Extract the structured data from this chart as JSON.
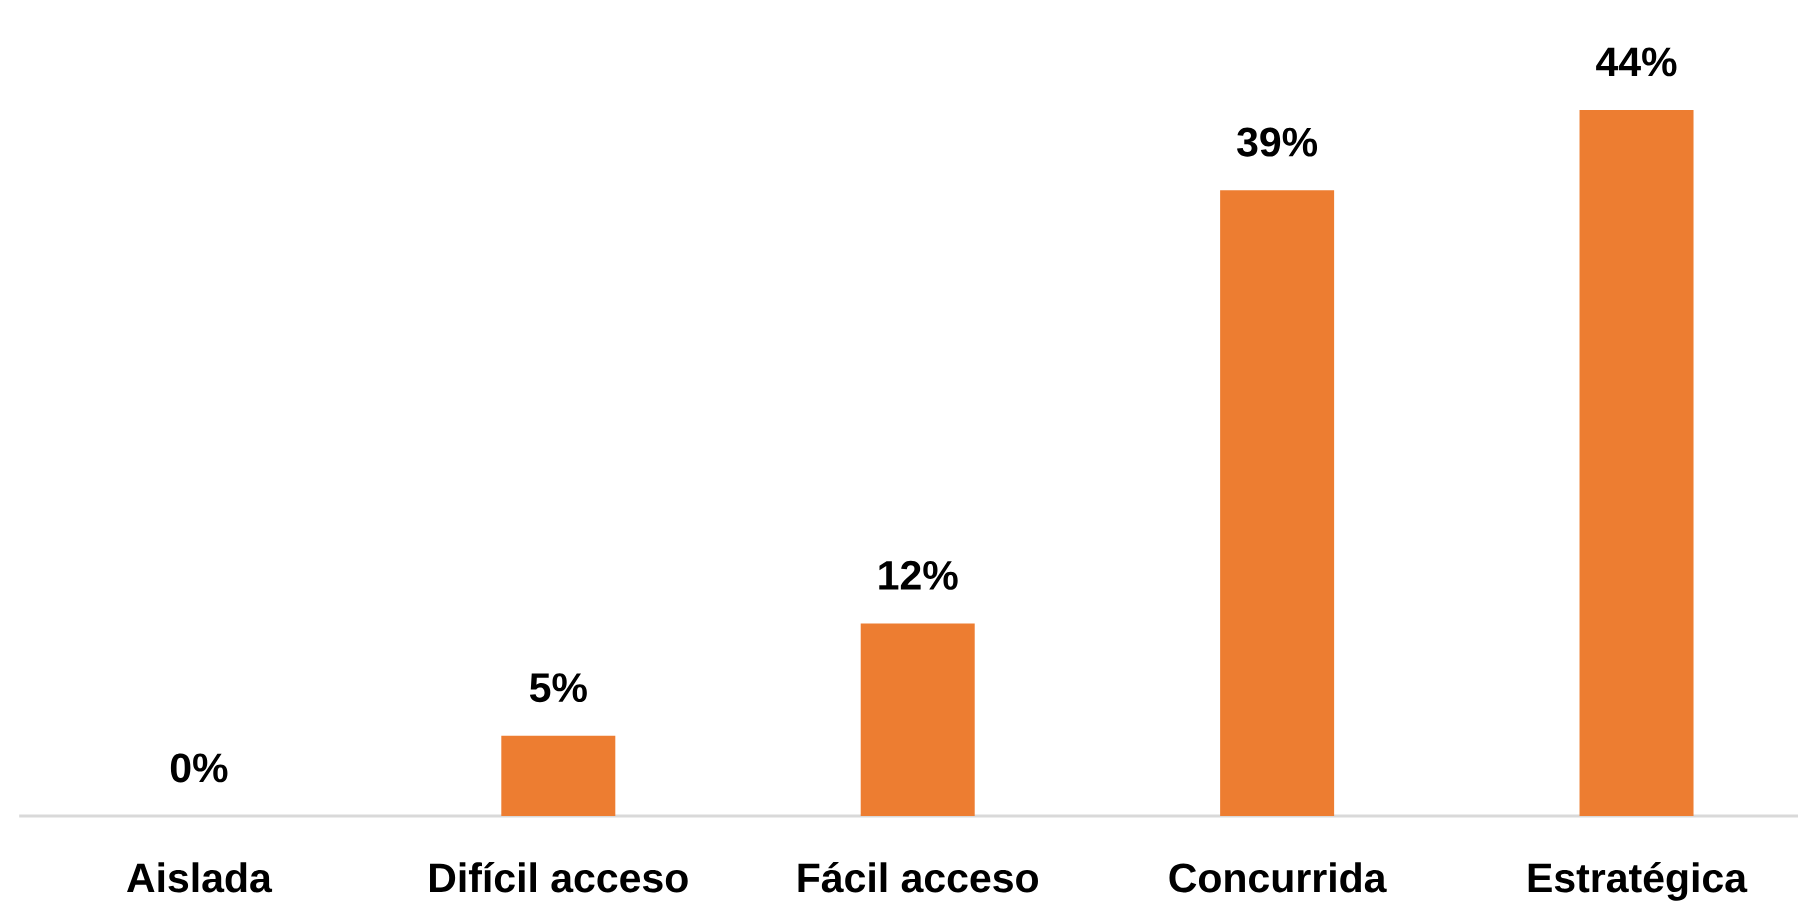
{
  "chart_data": {
    "type": "bar",
    "categories": [
      "Aislada",
      "Difícil acceso",
      "Fácil acceso",
      "Concurrida",
      "Estratégica"
    ],
    "values": [
      0,
      5,
      12,
      39,
      44
    ],
    "value_labels": [
      "0%",
      "5%",
      "12%",
      "39%",
      "44%"
    ],
    "color": "#ed7d31",
    "tick_labels": "x"
  }
}
